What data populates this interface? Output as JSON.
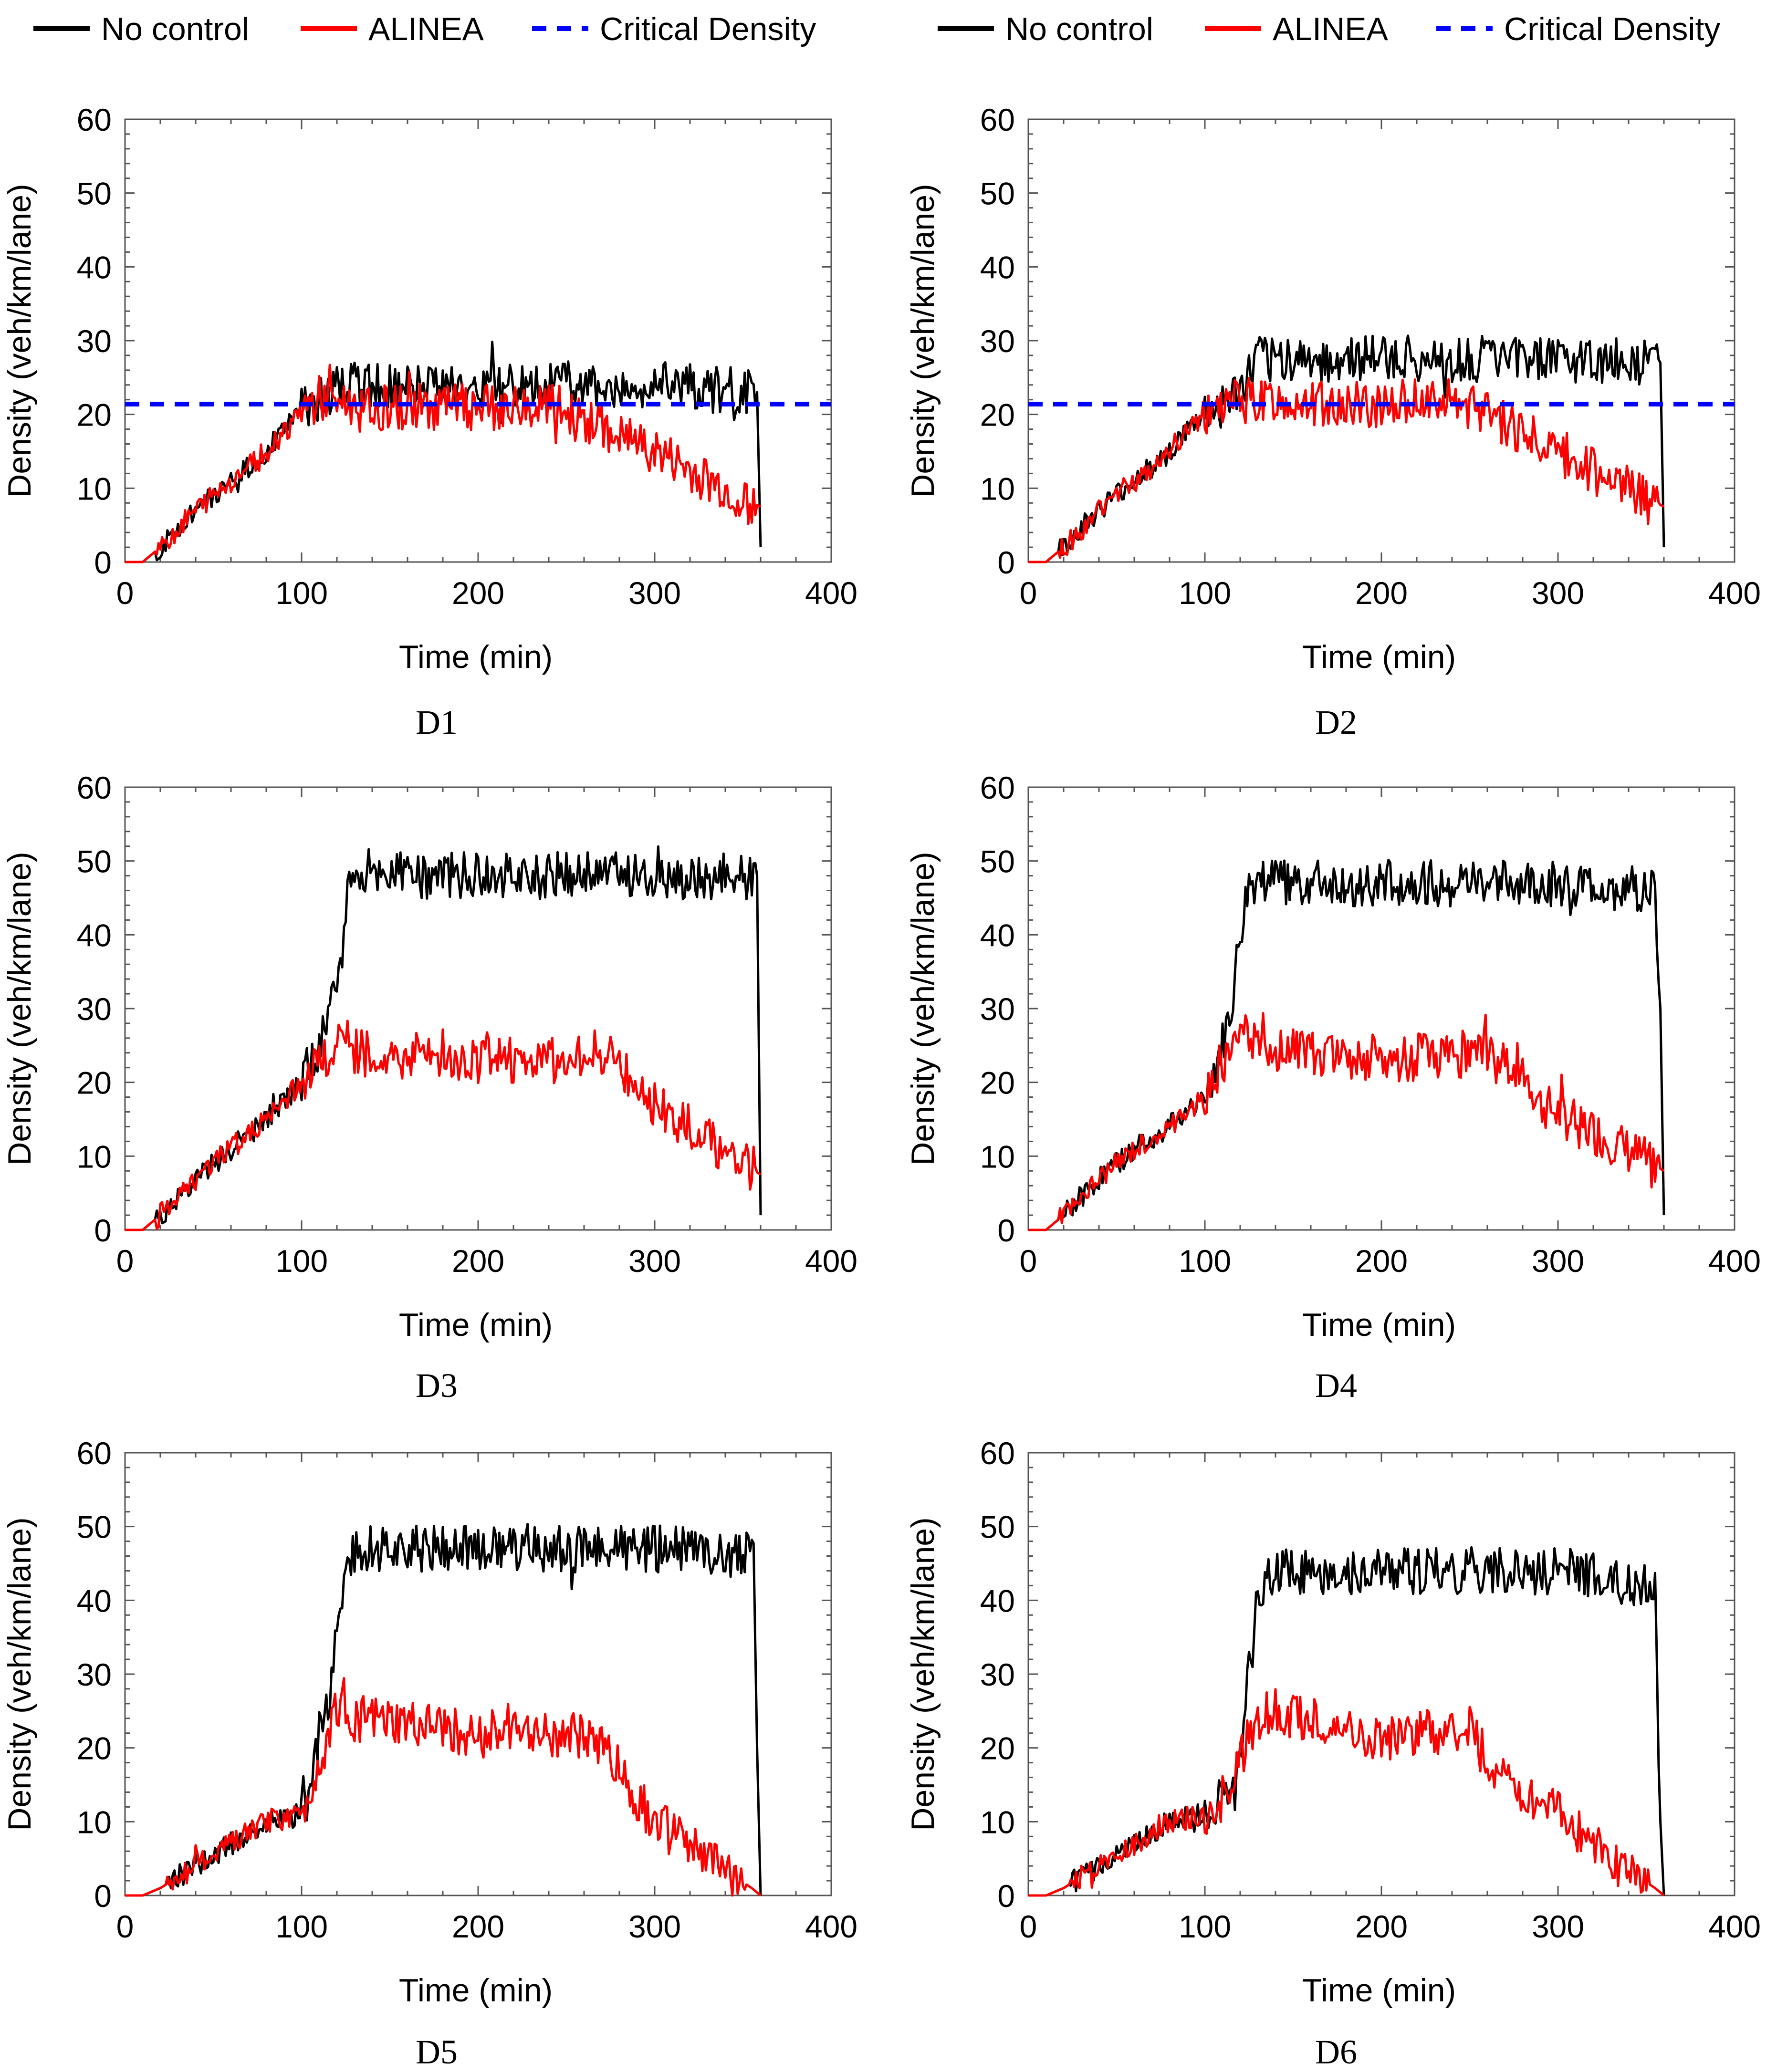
{
  "legend": {
    "entries": [
      {
        "label": "No control",
        "color": "#000000",
        "style": "solid"
      },
      {
        "label": "ALINEA",
        "color": "#ff0000",
        "style": "solid"
      },
      {
        "label": "Critical Density",
        "color": "#0000ff",
        "style": "dashed"
      }
    ]
  },
  "chart_data": [
    {
      "type": "line",
      "caption": "D1",
      "xlabel": "Time (min)",
      "ylabel": "Density (veh/km/lane)",
      "xlim": [
        0,
        400
      ],
      "ylim": [
        0,
        60
      ],
      "xticks": [
        0,
        100,
        200,
        300,
        400
      ],
      "yticks": [
        0,
        10,
        20,
        30,
        40,
        50,
        60
      ],
      "critical_density": 21.4,
      "series": [
        {
          "name": "No control",
          "color": "#000000",
          "x": [
            0,
            10,
            20,
            40,
            60,
            80,
            95,
            100,
            105,
            110,
            120,
            130,
            200,
            300,
            358,
            360
          ],
          "y": [
            0,
            0,
            2,
            7,
            11,
            15,
            19,
            21,
            21,
            22,
            24,
            24,
            24,
            24,
            23,
            2
          ]
        },
        {
          "name": "ALINEA",
          "color": "#ff0000",
          "x": [
            0,
            10,
            20,
            40,
            60,
            80,
            95,
            100,
            105,
            110,
            120,
            130,
            200,
            240,
            270,
            300,
            330,
            360
          ],
          "y": [
            0,
            0,
            2,
            7,
            11,
            15,
            19,
            21,
            21,
            22,
            22,
            21,
            21,
            21,
            18,
            15,
            11,
            7.5
          ]
        }
      ]
    },
    {
      "type": "line",
      "caption": "D2",
      "xlabel": "Time (min)",
      "ylabel": "Density (veh/km/lane)",
      "xlim": [
        0,
        400
      ],
      "ylim": [
        0,
        60
      ],
      "xticks": [
        0,
        100,
        200,
        300,
        400
      ],
      "yticks": [
        0,
        10,
        20,
        30,
        40,
        50,
        60
      ],
      "critical_density": 21.4,
      "series": [
        {
          "name": "No control",
          "color": "#000000",
          "x": [
            0,
            10,
            20,
            40,
            60,
            80,
            95,
            100,
            110,
            120,
            125,
            130,
            200,
            300,
            358,
            360
          ],
          "y": [
            0,
            0,
            2,
            7,
            11,
            15,
            19,
            20,
            21,
            23,
            25,
            27.5,
            27.5,
            27.5,
            27,
            2
          ]
        },
        {
          "name": "ALINEA",
          "color": "#ff0000",
          "x": [
            0,
            10,
            20,
            40,
            60,
            80,
            95,
            100,
            110,
            120,
            125,
            130,
            200,
            240,
            270,
            300,
            330,
            360
          ],
          "y": [
            0,
            0,
            2,
            7,
            11,
            15,
            19,
            20,
            21,
            22,
            22,
            21.5,
            21.5,
            22,
            19,
            15,
            11,
            7.5
          ]
        }
      ]
    },
    {
      "type": "line",
      "caption": "D3",
      "xlabel": "Time (min)",
      "ylabel": "Density (veh/km/lane)",
      "xlim": [
        0,
        400
      ],
      "ylim": [
        0,
        60
      ],
      "xticks": [
        0,
        100,
        200,
        300,
        400
      ],
      "yticks": [
        0,
        10,
        20,
        30,
        40,
        50,
        60
      ],
      "series": [
        {
          "name": "No control",
          "color": "#000000",
          "x": [
            0,
            10,
            20,
            40,
            60,
            80,
            100,
            110,
            120,
            123,
            126,
            130,
            200,
            300,
            358,
            360
          ],
          "y": [
            0,
            0,
            2,
            7,
            11,
            15,
            20,
            25,
            33,
            38,
            48,
            48,
            48,
            48,
            48,
            2
          ]
        },
        {
          "name": "ALINEA",
          "color": "#ff0000",
          "x": [
            0,
            10,
            20,
            40,
            60,
            80,
            100,
            110,
            120,
            130,
            200,
            240,
            270,
            290,
            300,
            330,
            360
          ],
          "y": [
            0,
            0,
            2,
            7,
            11,
            15,
            20,
            23,
            25,
            24,
            23,
            23,
            24,
            20,
            17,
            12,
            7.5
          ]
        }
      ]
    },
    {
      "type": "line",
      "caption": "D4",
      "xlabel": "Time (min)",
      "ylabel": "Density (veh/km/lane)",
      "xlim": [
        0,
        400
      ],
      "ylim": [
        0,
        60
      ],
      "xticks": [
        0,
        100,
        200,
        300,
        400
      ],
      "yticks": [
        0,
        10,
        20,
        30,
        40,
        50,
        60
      ],
      "series": [
        {
          "name": "No control",
          "color": "#000000",
          "x": [
            0,
            10,
            20,
            40,
            60,
            80,
            100,
            110,
            115,
            120,
            125,
            130,
            200,
            300,
            355,
            358,
            360
          ],
          "y": [
            0,
            0,
            2,
            7,
            11,
            14,
            18,
            25,
            30,
            40,
            47,
            47,
            47,
            47,
            46,
            30,
            2
          ]
        },
        {
          "name": "ALINEA",
          "color": "#ff0000",
          "x": [
            0,
            10,
            20,
            40,
            60,
            80,
            100,
            110,
            115,
            120,
            130,
            150,
            200,
            250,
            280,
            290,
            330,
            360
          ],
          "y": [
            0,
            0,
            2,
            7,
            11,
            14,
            18,
            22,
            26,
            27,
            26,
            24,
            23,
            24,
            22,
            17,
            12,
            8
          ]
        }
      ]
    },
    {
      "type": "line",
      "caption": "D5",
      "xlabel": "Time (min)",
      "ylabel": "Density (veh/km/lane)",
      "xlim": [
        0,
        400
      ],
      "ylim": [
        0,
        60
      ],
      "xticks": [
        0,
        100,
        200,
        300,
        400
      ],
      "yticks": [
        0,
        10,
        20,
        30,
        40,
        50,
        60
      ],
      "series": [
        {
          "name": "No control",
          "color": "#000000",
          "x": [
            0,
            10,
            20,
            40,
            60,
            80,
            100,
            105,
            110,
            115,
            120,
            125,
            130,
            200,
            300,
            356,
            358,
            360
          ],
          "y": [
            0,
            0,
            1,
            4,
            7,
            10,
            11,
            14,
            22,
            25,
            35,
            45,
            47,
            47,
            47,
            46,
            20,
            0
          ]
        },
        {
          "name": "ALINEA",
          "color": "#ff0000",
          "x": [
            0,
            10,
            20,
            40,
            60,
            80,
            100,
            105,
            110,
            115,
            120,
            125,
            130,
            200,
            240,
            270,
            285,
            300,
            330,
            355,
            360
          ],
          "y": [
            0,
            0,
            1,
            4,
            7,
            10,
            11,
            14,
            18,
            22,
            26,
            26,
            24,
            22,
            22,
            21,
            15,
            10,
            5,
            1,
            0
          ]
        }
      ]
    },
    {
      "type": "line",
      "caption": "D6",
      "xlabel": "Time (min)",
      "ylabel": "Density (veh/km/lane)",
      "xlim": [
        0,
        400
      ],
      "ylim": [
        0,
        60
      ],
      "xticks": [
        0,
        100,
        200,
        300,
        400
      ],
      "yticks": [
        0,
        10,
        20,
        30,
        40,
        50,
        60
      ],
      "series": [
        {
          "name": "No control",
          "color": "#000000",
          "x": [
            0,
            10,
            20,
            40,
            60,
            80,
            100,
            110,
            115,
            120,
            125,
            130,
            140,
            200,
            300,
            355,
            358,
            360
          ],
          "y": [
            0,
            0,
            1,
            4,
            7,
            10,
            11,
            13,
            15,
            20,
            30,
            40,
            44,
            44,
            44,
            42,
            10,
            0
          ]
        },
        {
          "name": "ALINEA",
          "color": "#ff0000",
          "x": [
            0,
            10,
            20,
            40,
            60,
            80,
            100,
            110,
            115,
            120,
            125,
            130,
            140,
            200,
            250,
            260,
            300,
            330,
            355,
            360
          ],
          "y": [
            0,
            0,
            1,
            4,
            7,
            10,
            11,
            13,
            15,
            18,
            22,
            24,
            25,
            21,
            23,
            18,
            11,
            5,
            1,
            0
          ]
        }
      ]
    }
  ]
}
